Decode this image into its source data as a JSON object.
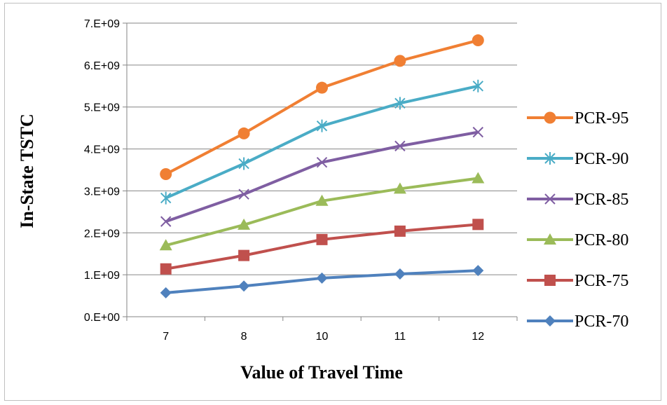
{
  "chart_data": {
    "type": "line",
    "title": "",
    "xlabel": "Value of Travel Time",
    "ylabel": "In-State TSTC",
    "categories": [
      "7",
      "8",
      "10",
      "11",
      "12"
    ],
    "ylim": [
      0,
      7000000000
    ],
    "yticks": [
      {
        "value": 0,
        "label": "0.E+00"
      },
      {
        "value": 1000000000,
        "label": "1.E+09"
      },
      {
        "value": 2000000000,
        "label": "2.E+09"
      },
      {
        "value": 3000000000,
        "label": "3.E+09"
      },
      {
        "value": 4000000000,
        "label": "4.E+09"
      },
      {
        "value": 5000000000,
        "label": "5.E+09"
      },
      {
        "value": 6000000000,
        "label": "6.E+09"
      },
      {
        "value": 7000000000,
        "label": "7.E+09"
      }
    ],
    "grid": "horizontal",
    "legend_position": "right",
    "series": [
      {
        "name": "PCR-95",
        "color": "#f07f33",
        "marker": "circle",
        "values": [
          3400000000,
          4370000000,
          5460000000,
          6100000000,
          6590000000
        ]
      },
      {
        "name": "PCR-90",
        "color": "#4aacc6",
        "marker": "asterisk",
        "values": [
          2830000000,
          3650000000,
          4550000000,
          5090000000,
          5500000000
        ]
      },
      {
        "name": "PCR-85",
        "color": "#7f5ea2",
        "marker": "x",
        "values": [
          2270000000,
          2920000000,
          3680000000,
          4070000000,
          4400000000
        ]
      },
      {
        "name": "PCR-80",
        "color": "#9bbb59",
        "marker": "triangle",
        "values": [
          1700000000,
          2190000000,
          2760000000,
          3050000000,
          3300000000
        ]
      },
      {
        "name": "PCR-75",
        "color": "#c0504d",
        "marker": "square",
        "values": [
          1140000000,
          1460000000,
          1840000000,
          2040000000,
          2200000000
        ]
      },
      {
        "name": "PCR-70",
        "color": "#4f81bd",
        "marker": "diamond",
        "values": [
          570000000,
          730000000,
          920000000,
          1020000000,
          1100000000
        ]
      }
    ]
  }
}
